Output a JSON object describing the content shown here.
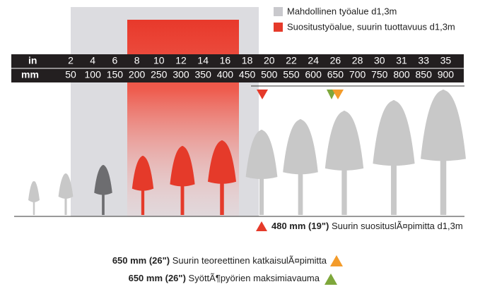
{
  "legend": [
    {
      "label": "Mahdollinen työalue d1,3m"
    },
    {
      "label": "Suositustyöalue, suurin tuottavuus d1,3m"
    }
  ],
  "scale": {
    "in_label": "in",
    "mm_label": "mm",
    "inches": [
      2,
      4,
      6,
      8,
      10,
      12,
      14,
      16,
      18,
      20,
      22,
      24,
      26,
      28,
      30,
      31,
      33,
      35
    ],
    "mm": [
      50,
      100,
      150,
      200,
      250,
      300,
      350,
      400,
      450,
      500,
      550,
      600,
      650,
      700,
      750,
      800,
      850,
      900
    ]
  },
  "notes": [
    {
      "bold": "480 mm (19\")",
      "text": "Suurin suosituslÃ¤pimitta d1,3m"
    },
    {
      "bold": "650 mm (26\")",
      "text": "Suurin teoreettinen katkaisulÃ¤pimitta"
    },
    {
      "bold": "650 mm (26\")",
      "text": "SyöttÃ¶pyörien maksimiavauma"
    }
  ]
}
